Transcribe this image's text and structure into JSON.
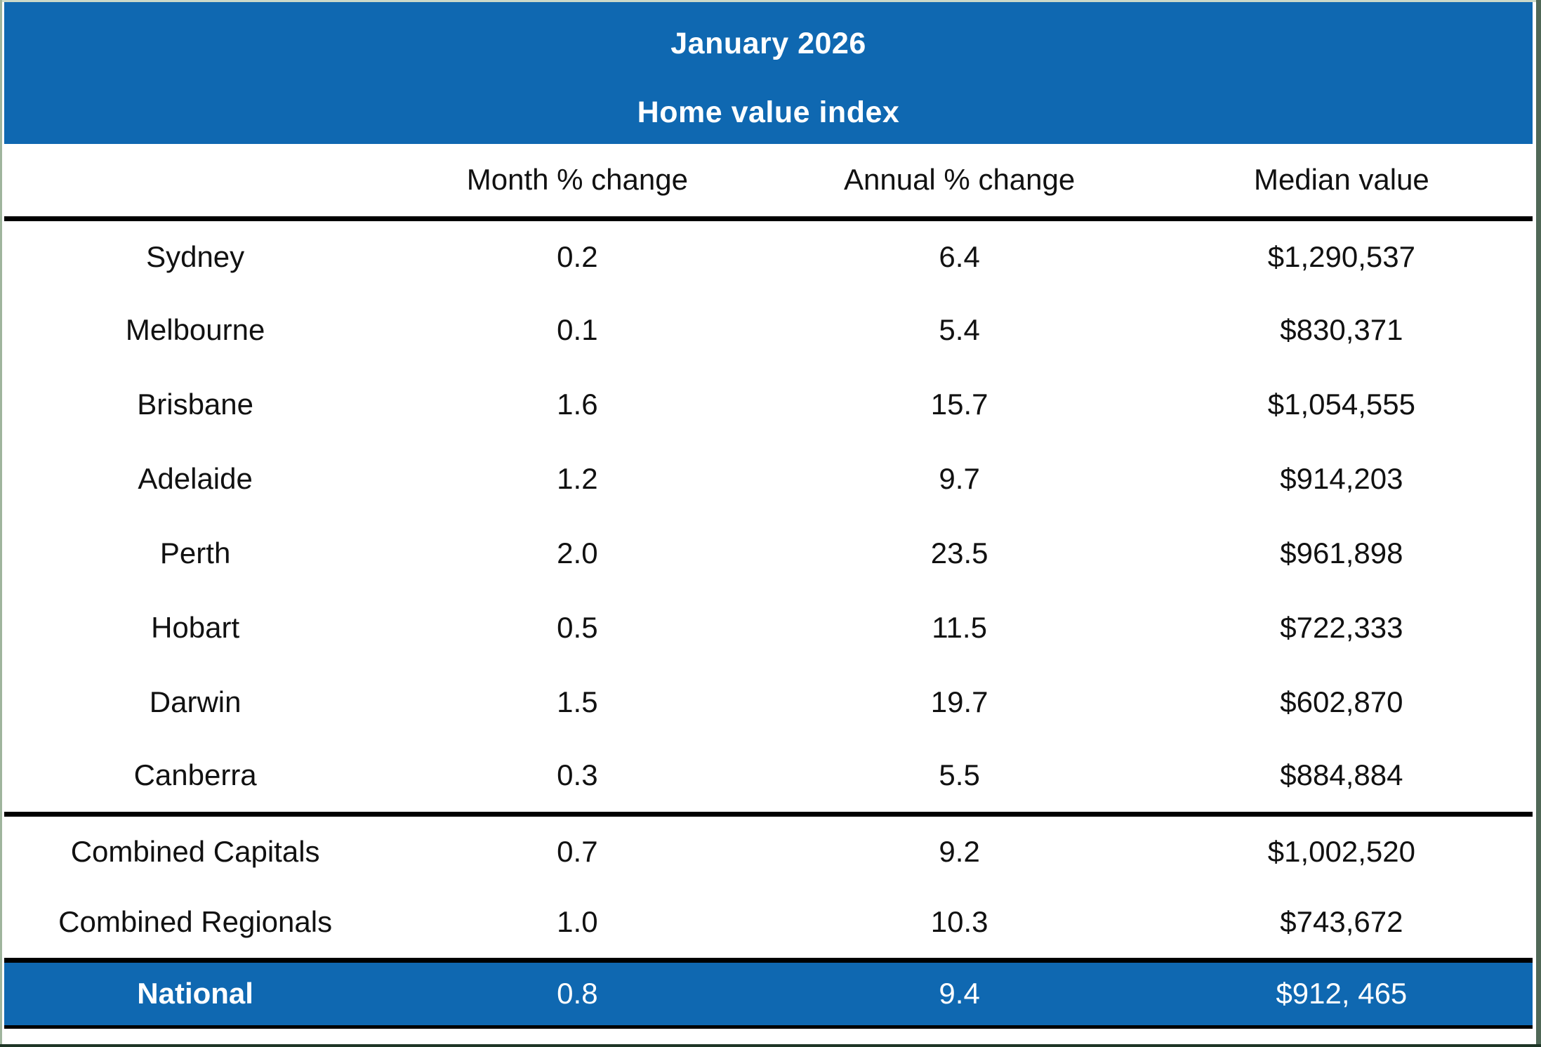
{
  "chart_data": {
    "type": "table",
    "title": "January 2026",
    "subtitle": "Home value index",
    "columns": [
      "Month % change",
      "Annual % change",
      "Median value"
    ],
    "city_rows": [
      {
        "region": "Sydney",
        "month_pct": "0.2",
        "annual_pct": "6.4",
        "median_value": "$1,290,537"
      },
      {
        "region": "Melbourne",
        "month_pct": "0.1",
        "annual_pct": "5.4",
        "median_value": "$830,371"
      },
      {
        "region": "Brisbane",
        "month_pct": "1.6",
        "annual_pct": "15.7",
        "median_value": "$1,054,555"
      },
      {
        "region": "Adelaide",
        "month_pct": "1.2",
        "annual_pct": "9.7",
        "median_value": "$914,203"
      },
      {
        "region": "Perth",
        "month_pct": "2.0",
        "annual_pct": "23.5",
        "median_value": "$961,898"
      },
      {
        "region": "Hobart",
        "month_pct": "0.5",
        "annual_pct": "11.5",
        "median_value": "$722,333"
      },
      {
        "region": "Darwin",
        "month_pct": "1.5",
        "annual_pct": "19.7",
        "median_value": "$602,870"
      },
      {
        "region": "Canberra",
        "month_pct": "0.3",
        "annual_pct": "5.5",
        "median_value": "$884,884"
      }
    ],
    "aggregate_rows": [
      {
        "region": "Combined Capitals",
        "month_pct": "0.7",
        "annual_pct": "9.2",
        "median_value": "$1,002,520"
      },
      {
        "region": "Combined Regionals",
        "month_pct": "1.0",
        "annual_pct": "10.3",
        "median_value": "$743,672"
      }
    ],
    "national": {
      "region": "National",
      "month_pct": "0.8",
      "annual_pct": "9.4",
      "median_value": "$912, 465"
    }
  },
  "colors": {
    "accent_blue": "#0F68B1",
    "rule_black": "#000000",
    "body_text": "#111111",
    "banner_text": "#FFFFFF"
  }
}
